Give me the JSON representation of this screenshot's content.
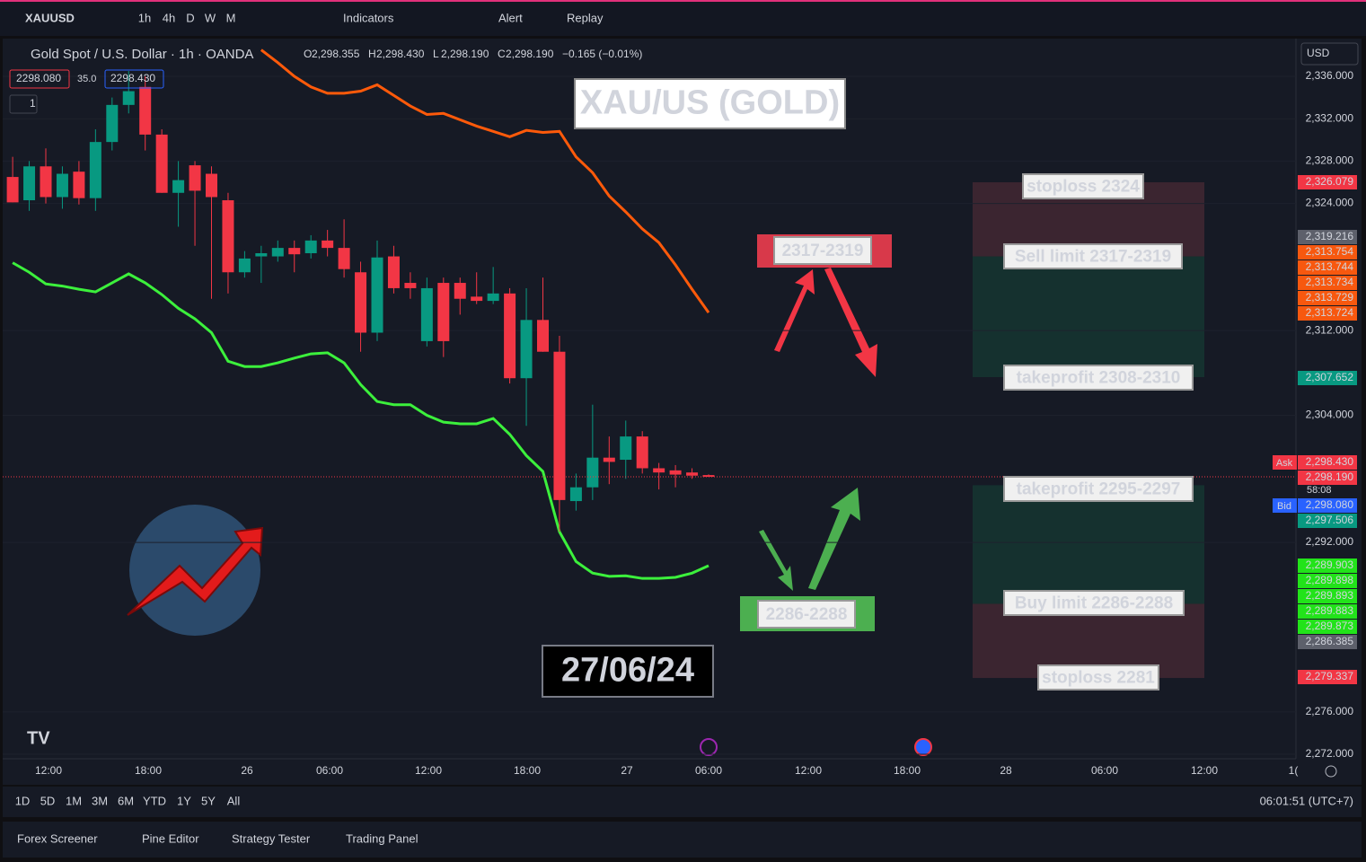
{
  "toolbar": {
    "symbol": "XAUUSD",
    "intervals": [
      "1h",
      "4h",
      "D",
      "W",
      "M"
    ],
    "indicators": "Indicators",
    "alert": "Alert",
    "replay": "Replay"
  },
  "legend": {
    "title": "Gold Spot / U.S. Dollar · 1h · OANDA",
    "ohlc": [
      {
        "k": "O",
        "v": "2,298.355"
      },
      {
        "k": "H",
        "v": "2,298.430"
      },
      {
        "k": "L",
        "v": "2,298.190"
      },
      {
        "k": "C",
        "v": "2,298.190"
      }
    ],
    "change": "−0.165 (−0.01%)",
    "bid_box": "2298.080",
    "spread": "35.0",
    "ask_box": "2298.430",
    "lots": "1"
  },
  "currency": "USD",
  "chart_data": {
    "type": "candlestick",
    "ylim": [
      2272,
      2336
    ],
    "yticks": [
      {
        "value": 2336,
        "label": "2,336.000"
      },
      {
        "value": 2332,
        "label": "2,332.000"
      },
      {
        "value": 2328,
        "label": "2,328.000"
      },
      {
        "value": 2324,
        "label": "2,324.000"
      },
      {
        "value": 2312,
        "label": "2,312.000"
      },
      {
        "value": 2304,
        "label": "2,304.000"
      },
      {
        "value": 2292,
        "label": "2,292.000"
      },
      {
        "value": 2276,
        "label": "2,276.000"
      },
      {
        "value": 2272,
        "label": "2,272.000"
      }
    ],
    "xtick_labels": [
      "12:00",
      "18:00",
      "26",
      "06:00",
      "12:00",
      "18:00",
      "27",
      "06:00",
      "12:00",
      "18:00",
      "28",
      "06:00",
      "12:00",
      "1("
    ],
    "up_color": "#089981",
    "down_color": "#f23645",
    "ohlc": [
      [
        2326.5,
        2328.4,
        2324.1,
        2324.1
      ],
      [
        2324.3,
        2328.0,
        2323.3,
        2327.5
      ],
      [
        2327.5,
        2329.2,
        2324.0,
        2324.6
      ],
      [
        2324.6,
        2327.5,
        2323.5,
        2326.8
      ],
      [
        2327.0,
        2328.0,
        2323.9,
        2324.5
      ],
      [
        2324.5,
        2331.0,
        2323.3,
        2329.8
      ],
      [
        2329.8,
        2334.0,
        2329.0,
        2333.3
      ],
      [
        2333.3,
        2336.5,
        2332.5,
        2334.6
      ],
      [
        2335.0,
        2336.0,
        2329.0,
        2330.5
      ],
      [
        2330.5,
        2331.0,
        2325.0,
        2325.0
      ],
      [
        2325.0,
        2328.0,
        2321.8,
        2326.2
      ],
      [
        2327.6,
        2328.0,
        2320.0,
        2325.2
      ],
      [
        2326.8,
        2327.5,
        2315.0,
        2324.6
      ],
      [
        2324.3,
        2325.0,
        2315.5,
        2317.5
      ],
      [
        2317.5,
        2319.5,
        2317.0,
        2318.8
      ],
      [
        2319.0,
        2320.0,
        2316.5,
        2319.3
      ],
      [
        2319.0,
        2320.5,
        2318.5,
        2319.8
      ],
      [
        2319.8,
        2320.5,
        2317.5,
        2319.2
      ],
      [
        2319.3,
        2321.0,
        2318.8,
        2320.5
      ],
      [
        2320.5,
        2321.5,
        2319.0,
        2319.8
      ],
      [
        2319.8,
        2322.5,
        2317.0,
        2317.8
      ],
      [
        2317.5,
        2318.5,
        2310.0,
        2311.8
      ],
      [
        2311.8,
        2320.5,
        2311.0,
        2318.9
      ],
      [
        2319.0,
        2320.0,
        2315.5,
        2316.0
      ],
      [
        2316.5,
        2317.5,
        2315.0,
        2316.0
      ],
      [
        2311.0,
        2317.0,
        2310.5,
        2316.0
      ],
      [
        2316.5,
        2317.0,
        2309.5,
        2311.0
      ],
      [
        2316.5,
        2317.0,
        2313.5,
        2315.0
      ],
      [
        2315.2,
        2317.5,
        2314.5,
        2314.8
      ],
      [
        2314.8,
        2318.0,
        2314.5,
        2315.5
      ],
      [
        2315.5,
        2316.0,
        2307.0,
        2307.5
      ],
      [
        2307.5,
        2316.0,
        2303.0,
        2313.0
      ],
      [
        2313.0,
        2317.0,
        2310.0,
        2310.0
      ],
      [
        2310.0,
        2311.5,
        2293.0,
        2296.0
      ],
      [
        2295.9,
        2298.5,
        2295.0,
        2297.2
      ],
      [
        2297.2,
        2305.0,
        2296.0,
        2300.0
      ],
      [
        2300.0,
        2302.0,
        2297.5,
        2299.6
      ],
      [
        2299.8,
        2303.5,
        2298.0,
        2302.0
      ],
      [
        2302.0,
        2302.5,
        2298.5,
        2299.0
      ],
      [
        2299.0,
        2299.5,
        2297.0,
        2298.6
      ],
      [
        2298.8,
        2299.3,
        2297.2,
        2298.4
      ],
      [
        2298.6,
        2299.0,
        2298.0,
        2298.3
      ],
      [
        2298.355,
        2298.43,
        2298.19,
        2298.19
      ]
    ],
    "series": [
      {
        "color": "#ff5a0a",
        "values": [
          null,
          null,
          null,
          null,
          null,
          null,
          null,
          null,
          null,
          null,
          null,
          null,
          null,
          null,
          null,
          2338.5,
          2337.3,
          2336.0,
          2335.0,
          2334.4,
          2334.4,
          2334.6,
          2335.2,
          2334.2,
          2333.2,
          2332.4,
          2332.5,
          2331.9,
          2331.3,
          2330.8,
          2330.3,
          2330.9,
          2330.7,
          2330.8,
          2328.4,
          2326.9,
          2324.7,
          2323.2,
          2321.6,
          2320.3,
          2318.2,
          2315.9,
          2313.7
        ]
      },
      {
        "color": "#3cf03c",
        "values": [
          2318.4,
          2317.5,
          2316.4,
          2316.2,
          2315.9,
          2315.65,
          2316.5,
          2317.35,
          2316.5,
          2315.4,
          2314.1,
          2313.1,
          2311.8,
          2309.1,
          2308.6,
          2308.6,
          2308.95,
          2309.4,
          2309.8,
          2309.9,
          2308.95,
          2306.9,
          2305.3,
          2305.0,
          2305.0,
          2304.0,
          2303.35,
          2303.2,
          2303.2,
          2303.7,
          2302.2,
          2300.2,
          2298.7,
          2293.0,
          2290.2,
          2289.1,
          2288.8,
          2288.85,
          2288.6,
          2288.6,
          2288.7,
          2289.1,
          2289.8
        ]
      }
    ],
    "zones": [
      {
        "top": 2326.0,
        "bottom": 2319.0,
        "color": "#3b2530"
      },
      {
        "top": 2319.0,
        "bottom": 2307.6,
        "color": "#15312f"
      },
      {
        "top": 2297.4,
        "bottom": 2286.2,
        "color": "#15312f"
      },
      {
        "top": 2286.2,
        "bottom": 2279.2,
        "color": "#3b2530"
      }
    ],
    "price_tags": [
      {
        "label": "2,326.079",
        "value": 2326.079,
        "color": "#f23645"
      },
      {
        "label": "2,319.216",
        "value": 2319.216,
        "color": "#5d606b"
      },
      {
        "label": "2,313.754",
        "value": 2313.754,
        "color": "#f7580f"
      },
      {
        "label": "2,313.744",
        "value": 2313.744,
        "color": "#f7580f"
      },
      {
        "label": "2,313.734",
        "value": 2313.734,
        "color": "#f7580f"
      },
      {
        "label": "2,313.729",
        "value": 2313.729,
        "color": "#f7580f"
      },
      {
        "label": "2,313.724",
        "value": 2313.724,
        "color": "#f7580f"
      },
      {
        "label": "2,307.652",
        "value": 2307.652,
        "color": "#089981"
      },
      {
        "label": "2,298.430",
        "value": 2298.43,
        "color": "#f23645"
      },
      {
        "label": "2,298.190",
        "value": 2298.19,
        "color": "#f23645"
      },
      {
        "label": "2,298.080",
        "value": 2298.08,
        "color": "#2962ff"
      },
      {
        "label": "2,297.506",
        "value": 2297.506,
        "color": "#089981"
      },
      {
        "label": "2,289.903",
        "value": 2289.903,
        "color": "#22e31a"
      },
      {
        "label": "2,289.898",
        "value": 2289.898,
        "color": "#22e31a"
      },
      {
        "label": "2,289.893",
        "value": 2289.893,
        "color": "#22e31a"
      },
      {
        "label": "2,289.883",
        "value": 2289.883,
        "color": "#22e31a"
      },
      {
        "label": "2,289.873",
        "value": 2289.873,
        "color": "#22e31a"
      },
      {
        "label": "2,286.385",
        "value": 2286.385,
        "color": "#5d606b"
      },
      {
        "label": "2,279.337",
        "value": 2279.337,
        "color": "#f23645"
      }
    ],
    "ask": "Ask",
    "bid": "Bid",
    "countdown": "58:08"
  },
  "annotations": {
    "title": "XAU/US (GOLD)",
    "sell_zone": "2317-2319",
    "buy_zone": "2286-2288",
    "date": "27/06/24",
    "labels": [
      "stoploss 2324",
      "Sell limit 2317-2319",
      "takeprofit 2308-2310",
      "takeprofit 2295-2297",
      "Buy limit 2286-2288",
      "stoploss 2281"
    ]
  },
  "bottom_bar": {
    "ranges": [
      "1D",
      "5D",
      "1M",
      "3M",
      "6M",
      "YTD",
      "1Y",
      "5Y",
      "All"
    ],
    "clock": "06:01:51 (UTC+7)"
  },
  "tabs": [
    "Forex Screener",
    "Pine Editor",
    "Strategy Tester",
    "Trading Panel"
  ]
}
